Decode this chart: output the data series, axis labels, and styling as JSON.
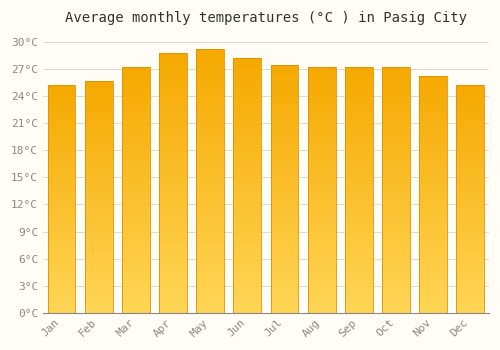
{
  "title": "Average monthly temperatures (°C ) in Pasig City",
  "months": [
    "Jan",
    "Feb",
    "Mar",
    "Apr",
    "May",
    "Jun",
    "Jul",
    "Aug",
    "Sep",
    "Oct",
    "Nov",
    "Dec"
  ],
  "temperatures": [
    25.2,
    25.7,
    27.3,
    28.8,
    29.2,
    28.3,
    27.5,
    27.3,
    27.3,
    27.3,
    26.3,
    25.3
  ],
  "bar_color_top": "#F5A800",
  "bar_color_bottom": "#FFD555",
  "bar_edge_color": "#E09000",
  "background_color": "#FFFDF5",
  "grid_color": "#DDDDCC",
  "ylim": [
    0,
    31
  ],
  "yticks": [
    0,
    3,
    6,
    9,
    12,
    15,
    18,
    21,
    24,
    27,
    30
  ],
  "title_fontsize": 10,
  "tick_fontsize": 8,
  "font_family": "monospace"
}
